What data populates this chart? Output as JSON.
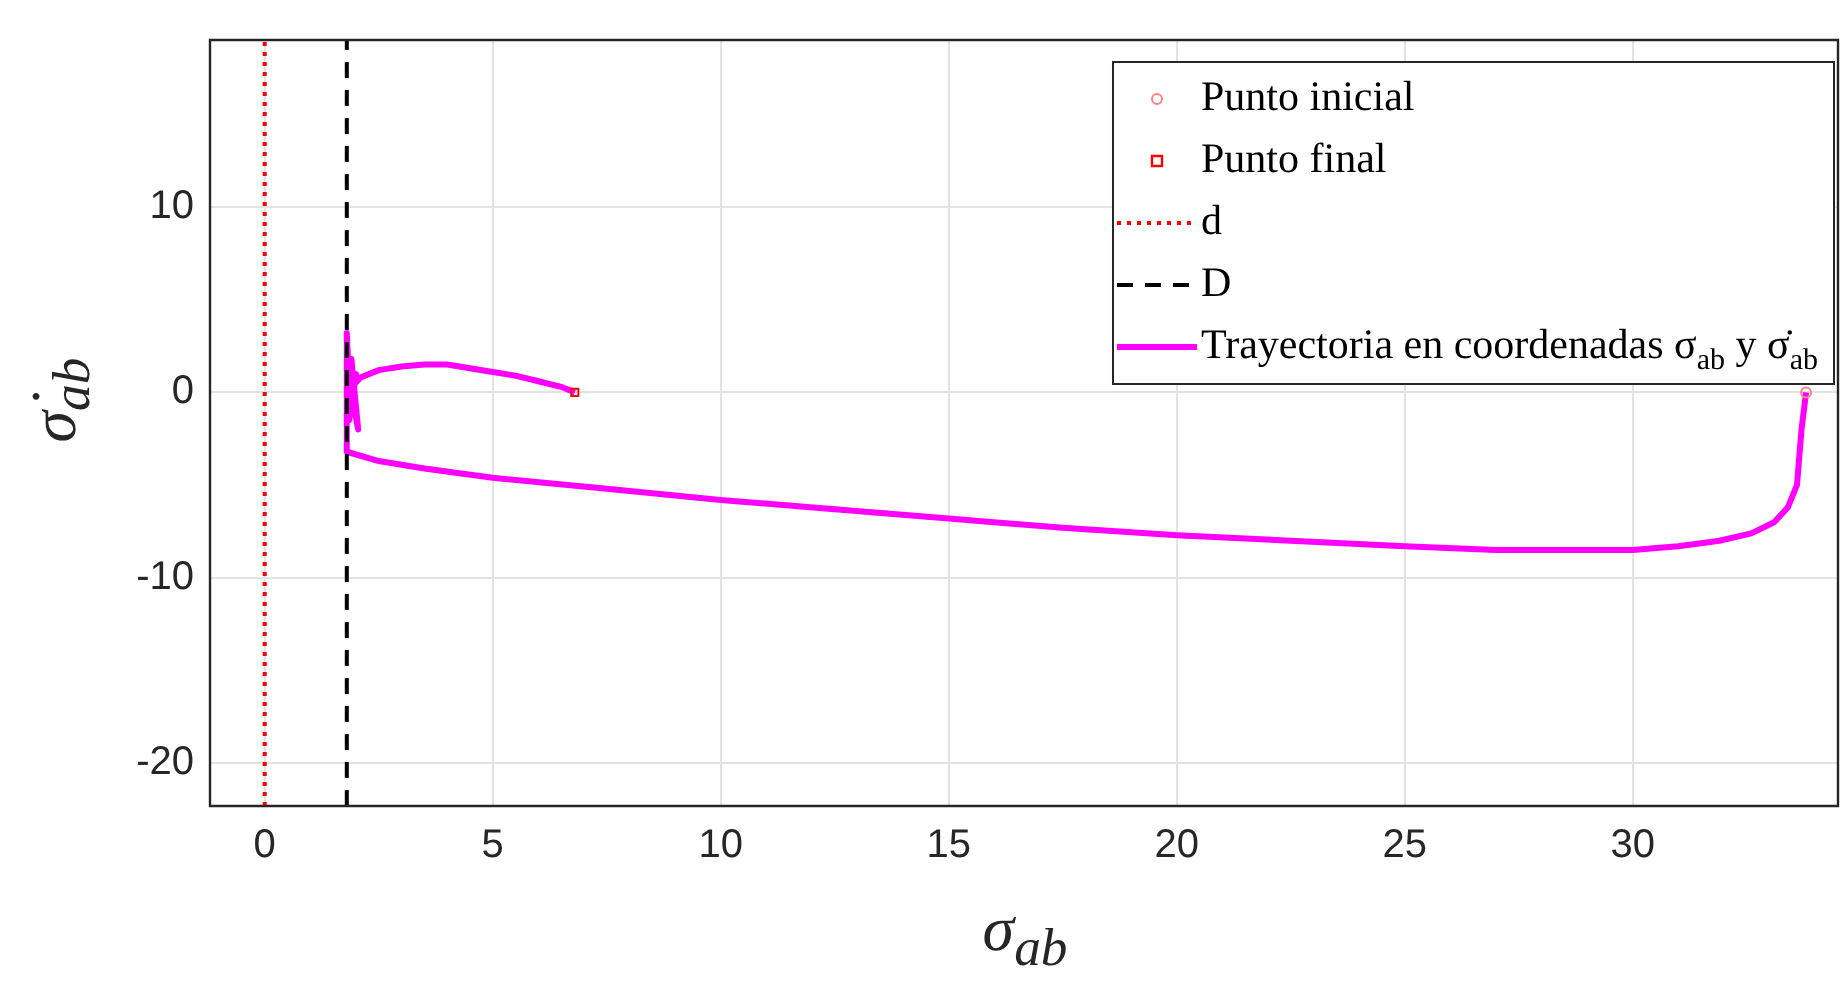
{
  "chart_data": {
    "type": "line",
    "xlabel": "σ$_{ab}$",
    "ylabel": "σ̇$_{ab}$",
    "xlim": [
      -1.2,
      34.5
    ],
    "ylim": [
      -22.3,
      19
    ],
    "xticks": [
      0,
      5,
      10,
      15,
      20,
      25,
      30
    ],
    "yticks": [
      -20,
      -10,
      0,
      10
    ],
    "grid": true,
    "legend": "top right",
    "series": [
      {
        "name": "Punto inicial",
        "type": "scatter",
        "marker": "circle",
        "color": "#ff8080",
        "x": [
          33.8
        ],
        "values": [
          0
        ]
      },
      {
        "name": "Punto final",
        "type": "scatter",
        "marker": "square",
        "color": "#ff0000",
        "x": [
          6.8
        ],
        "values": [
          0
        ]
      },
      {
        "name": "d",
        "type": "line",
        "marker": "none",
        "line_style": "dotted",
        "color": "#ff0000",
        "x": [
          0,
          0
        ],
        "values": [
          -22.3,
          19
        ]
      },
      {
        "name": "D",
        "type": "line",
        "marker": "none",
        "line_style": "dashed",
        "color": "#000000",
        "x": [
          1.8,
          1.8
        ],
        "values": [
          -22.3,
          19
        ]
      },
      {
        "name": "Trayectoria en coordenadas σ$_{ab}$ y σ̇$_{ab}$",
        "type": "line",
        "marker": "none",
        "color": "#ff00ff",
        "x": [
          33.8,
          33.7,
          33.6,
          33.4,
          33.1,
          32.6,
          31.9,
          31,
          30,
          29,
          28,
          27,
          25,
          22.5,
          20,
          17.5,
          15,
          12.5,
          10,
          7.5,
          5,
          3.5,
          2.5,
          1.8,
          1.8,
          1.85,
          2.05,
          1.9,
          1.85,
          2.0,
          1.9,
          1.95,
          2.1,
          2.5,
          3,
          3.5,
          4,
          4.5,
          5,
          5.5,
          6,
          6.5,
          6.8
        ],
        "values": [
          0,
          -2,
          -5,
          -6.2,
          -7,
          -7.6,
          -8,
          -8.3,
          -8.5,
          -8.5,
          -8.5,
          -8.5,
          -8.3,
          -8,
          -7.7,
          -7.3,
          -6.8,
          -6.3,
          -5.8,
          -5.2,
          -4.6,
          -4.1,
          -3.7,
          -3.2,
          3.2,
          0.5,
          -2,
          1.8,
          -1.5,
          1,
          -0.8,
          0.4,
          0.8,
          1.2,
          1.4,
          1.5,
          1.5,
          1.3,
          1.1,
          0.9,
          0.6,
          0.3,
          0
        ]
      }
    ]
  }
}
